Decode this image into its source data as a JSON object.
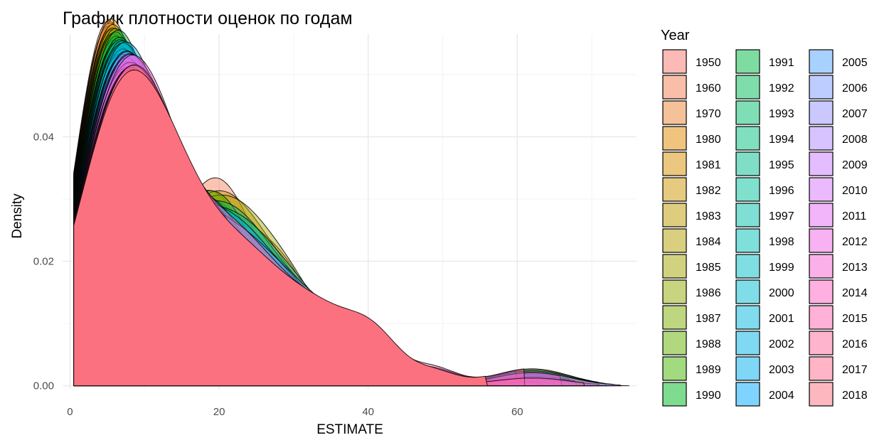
{
  "chart_data": {
    "type": "area",
    "title": "График плотности оценок по годам",
    "xlabel": "ESTIMATE",
    "ylabel": "Density",
    "xlim": [
      -1,
      76
    ],
    "ylim": [
      -0.0005,
      0.0565
    ],
    "x_ticks": [
      0,
      20,
      40,
      60
    ],
    "y_ticks": [
      0.0,
      0.02,
      0.04
    ],
    "y_tick_labels": [
      "0.00",
      "0.02",
      "0.04"
    ],
    "legend_title": "Year",
    "legend_position": "right",
    "grid": true,
    "series": [
      {
        "name": "1950",
        "color": "#F8766D"
      },
      {
        "name": "1960",
        "color": "#F27D52"
      },
      {
        "name": "1970",
        "color": "#EA8331"
      },
      {
        "name": "1980",
        "color": "#E18A00"
      },
      {
        "name": "1981",
        "color": "#D89000"
      },
      {
        "name": "1982",
        "color": "#CD9600"
      },
      {
        "name": "1983",
        "color": "#C09B00"
      },
      {
        "name": "1984",
        "color": "#B3A000"
      },
      {
        "name": "1985",
        "color": "#A3A500"
      },
      {
        "name": "1986",
        "color": "#91AA00"
      },
      {
        "name": "1987",
        "color": "#7CAE00"
      },
      {
        "name": "1988",
        "color": "#64B200"
      },
      {
        "name": "1989",
        "color": "#45B500"
      },
      {
        "name": "1990",
        "color": "#00B81F"
      },
      {
        "name": "1991",
        "color": "#00BA42"
      },
      {
        "name": "1992",
        "color": "#00BC59"
      },
      {
        "name": "1993",
        "color": "#00BE6C"
      },
      {
        "name": "1994",
        "color": "#00BF7D"
      },
      {
        "name": "1995",
        "color": "#00C08D"
      },
      {
        "name": "1996",
        "color": "#00C19C"
      },
      {
        "name": "1997",
        "color": "#00C0AA"
      },
      {
        "name": "1998",
        "color": "#00BFB8"
      },
      {
        "name": "1999",
        "color": "#00BDC4"
      },
      {
        "name": "2000",
        "color": "#00BBD0"
      },
      {
        "name": "2001",
        "color": "#00B8DB"
      },
      {
        "name": "2002",
        "color": "#00B4E5"
      },
      {
        "name": "2003",
        "color": "#00AFEF"
      },
      {
        "name": "2004",
        "color": "#00A9FF"
      },
      {
        "name": "2005",
        "color": "#53A4FF"
      },
      {
        "name": "2006",
        "color": "#7D9BFF"
      },
      {
        "name": "2007",
        "color": "#9691FF"
      },
      {
        "name": "2008",
        "color": "#AF88FF"
      },
      {
        "name": "2009",
        "color": "#C77CFF"
      },
      {
        "name": "2010",
        "color": "#D874FD"
      },
      {
        "name": "2011",
        "color": "#E76BF3"
      },
      {
        "name": "2012",
        "color": "#F263E6"
      },
      {
        "name": "2013",
        "color": "#FA62D4"
      },
      {
        "name": "2014",
        "color": "#FF61C3"
      },
      {
        "name": "2015",
        "color": "#FF64B0"
      },
      {
        "name": "2016",
        "color": "#FF699C"
      },
      {
        "name": "2017",
        "color": "#FF6C8B"
      },
      {
        "name": "2018",
        "color": "#FC717F"
      }
    ]
  }
}
